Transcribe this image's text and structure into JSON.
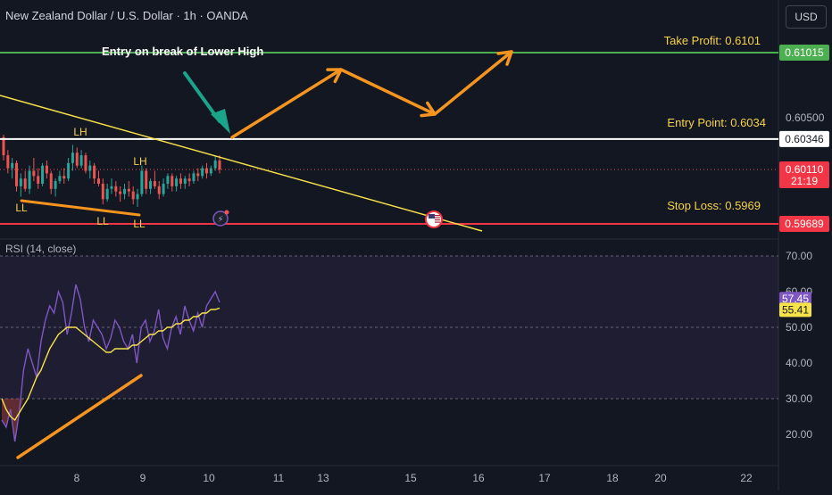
{
  "header": {
    "title": "New Zealand Dollar / U.S. Dollar · 1h · OANDA",
    "currency_button": "USD"
  },
  "colors": {
    "background": "#131722",
    "bull": "#26a69a",
    "bear": "#ef5350",
    "take_profit": "#4caf50",
    "entry": "#ffffff",
    "stop_loss": "#f23645",
    "trendline": "#f7e24a",
    "arrow": "#f5941e",
    "callout_arrow": "#1aa489",
    "rsi_line": "#7e57c2",
    "rsi_ma": "#f7e24a"
  },
  "chart_data": [
    {
      "type": "candlestick",
      "title": "New Zealand Dollar / U.S. Dollar · 1h · OANDA",
      "x_ticks": [
        "8",
        "9",
        "10",
        "11",
        "13",
        "15",
        "16",
        "17",
        "18",
        "20",
        "22"
      ],
      "y_ticks": [
        "0.60500"
      ],
      "price_badges": [
        {
          "label": "0.61015",
          "value": 0.61015,
          "color": "#4caf50"
        },
        {
          "label": "0.60346",
          "value": 0.60346,
          "color": "#ffffff"
        },
        {
          "label": "0.60110",
          "value": 0.6011,
          "color": "#f23645",
          "sub": "21:19"
        },
        {
          "label": "0.59689",
          "value": 0.59689,
          "color": "#f23645"
        }
      ],
      "levels": [
        {
          "name": "take-profit",
          "label": "Take Profit: 0.6101",
          "value": 0.61015
        },
        {
          "name": "entry-point",
          "label": "Entry Point: 0.6034",
          "value": 0.60346
        },
        {
          "name": "stop-loss",
          "label": "Stop Loss: 0.5969",
          "value": 0.59689
        }
      ],
      "current_price": 0.6011,
      "annotations": {
        "entry_text": "Entry on break of Lower High",
        "swing_labels": [
          {
            "text": "LH",
            "kind": "high"
          },
          {
            "text": "LH",
            "kind": "high"
          },
          {
            "text": "LL",
            "kind": "low"
          },
          {
            "text": "LL",
            "kind": "low"
          },
          {
            "text": "LL",
            "kind": "low"
          }
        ]
      },
      "ohlc": [
        [
          0.6036,
          0.6038,
          0.6018,
          0.6022
        ],
        [
          0.6022,
          0.6026,
          0.6008,
          0.6012
        ],
        [
          0.6012,
          0.602,
          0.6004,
          0.6016
        ],
        [
          0.6016,
          0.6018,
          0.5994,
          0.5998
        ],
        [
          0.5998,
          0.6008,
          0.599,
          0.6004
        ],
        [
          0.6004,
          0.601,
          0.5994,
          0.5996
        ],
        [
          0.5996,
          0.6014,
          0.5992,
          0.601
        ],
        [
          0.601,
          0.602,
          0.6002,
          0.6006
        ],
        [
          0.6006,
          0.6012,
          0.5996,
          0.6
        ],
        [
          0.6,
          0.6016,
          0.5998,
          0.6014
        ],
        [
          0.6014,
          0.6018,
          0.6004,
          0.6008
        ],
        [
          0.6008,
          0.601,
          0.5992,
          0.5996
        ],
        [
          0.5996,
          0.6004,
          0.599,
          0.6002
        ],
        [
          0.6002,
          0.601,
          0.6,
          0.6006
        ],
        [
          0.6006,
          0.6012,
          0.6,
          0.6004
        ],
        [
          0.6004,
          0.602,
          0.6002,
          0.6016
        ],
        [
          0.6016,
          0.603,
          0.601,
          0.6024
        ],
        [
          0.6024,
          0.6028,
          0.6012,
          0.6014
        ],
        [
          0.6014,
          0.6026,
          0.6012,
          0.6022
        ],
        [
          0.6022,
          0.6024,
          0.6008,
          0.601
        ],
        [
          0.601,
          0.6018,
          0.6004,
          0.6014
        ],
        [
          0.6014,
          0.6016,
          0.6,
          0.6004
        ],
        [
          0.6004,
          0.601,
          0.5998,
          0.6
        ],
        [
          0.6,
          0.6004,
          0.5984,
          0.5988
        ],
        [
          0.5988,
          0.6,
          0.5986,
          0.5996
        ],
        [
          0.5996,
          0.6004,
          0.5992,
          0.5998
        ],
        [
          0.5998,
          0.6002,
          0.599,
          0.5994
        ],
        [
          0.5994,
          0.5998,
          0.5986,
          0.5992
        ],
        [
          0.5992,
          0.6,
          0.5988,
          0.5996
        ],
        [
          0.5996,
          0.6002,
          0.599,
          0.5994
        ],
        [
          0.5994,
          0.5998,
          0.5984,
          0.5988
        ],
        [
          0.5988,
          0.5996,
          0.5982,
          0.5992
        ],
        [
          0.5992,
          0.6014,
          0.599,
          0.601
        ],
        [
          0.601,
          0.6012,
          0.5992,
          0.5996
        ],
        [
          0.5996,
          0.6004,
          0.5992,
          0.6002
        ],
        [
          0.6002,
          0.601,
          0.5996,
          0.5998
        ],
        [
          0.5998,
          0.6002,
          0.5988,
          0.5992
        ],
        [
          0.5992,
          0.6004,
          0.599,
          0.6
        ],
        [
          0.6,
          0.6008,
          0.5996,
          0.6006
        ],
        [
          0.6006,
          0.6008,
          0.5994,
          0.5998
        ],
        [
          0.5998,
          0.6006,
          0.5994,
          0.6004
        ],
        [
          0.6004,
          0.6008,
          0.5996,
          0.6
        ],
        [
          0.6,
          0.6006,
          0.5996,
          0.6004
        ],
        [
          0.6004,
          0.6008,
          0.5998,
          0.6002
        ],
        [
          0.6002,
          0.601,
          0.6,
          0.6008
        ],
        [
          0.6008,
          0.6012,
          0.6002,
          0.6006
        ],
        [
          0.6006,
          0.6014,
          0.6004,
          0.6012
        ],
        [
          0.6012,
          0.6016,
          0.6004,
          0.6008
        ],
        [
          0.6008,
          0.6014,
          0.6006,
          0.6012
        ],
        [
          0.6012,
          0.6022,
          0.601,
          0.6018
        ],
        [
          0.6018,
          0.6022,
          0.6008,
          0.6011
        ]
      ]
    },
    {
      "type": "line",
      "title": "RSI (14, close)",
      "y_ticks": [
        "70.00",
        "60.00",
        "50.00",
        "40.00",
        "30.00",
        "20.00"
      ],
      "ylim": [
        15,
        73
      ],
      "band": [
        30,
        70
      ],
      "value_badges": [
        {
          "label": "57.45",
          "value": 57.45,
          "color": "#7e57c2"
        },
        {
          "label": "55.41",
          "value": 55.41,
          "color": "#f7e24a"
        }
      ],
      "series": [
        {
          "values": [
            24,
            22,
            27,
            18,
            26,
            38,
            44,
            40,
            36,
            46,
            52,
            56,
            54,
            60,
            57,
            48,
            54,
            62,
            58,
            50,
            46,
            52,
            50,
            48,
            44,
            47,
            52,
            50,
            46,
            44,
            48,
            40,
            50,
            52,
            46,
            49,
            55,
            47,
            44,
            50,
            53,
            48,
            56,
            52,
            49,
            54,
            50,
            56,
            58,
            60,
            57
          ]
        },
        {
          "values": [
            30,
            27,
            25,
            24,
            26,
            28,
            30,
            33,
            36,
            38,
            41,
            44,
            46,
            48,
            49,
            50,
            50,
            50,
            49,
            48,
            47,
            46,
            45,
            44,
            43,
            43,
            44,
            44,
            44,
            44,
            45,
            45,
            46,
            47,
            48,
            48,
            49,
            49,
            50,
            50,
            51,
            51,
            52,
            52,
            53,
            53,
            54,
            54,
            55,
            55,
            55.4
          ]
        }
      ]
    }
  ]
}
